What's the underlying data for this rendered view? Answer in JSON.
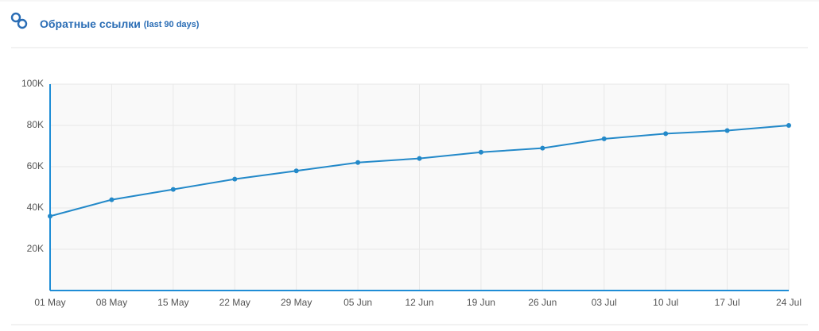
{
  "header": {
    "title": "Обратные ссылки",
    "subtitle": "(last 90 days)"
  },
  "chart_data": {
    "type": "line",
    "categories": [
      "01 May",
      "08 May",
      "15 May",
      "22 May",
      "29 May",
      "05 Jun",
      "12 Jun",
      "19 Jun",
      "26 Jun",
      "03 Jul",
      "10 Jul",
      "17 Jul",
      "24 Jul"
    ],
    "series": [
      {
        "color": "#2389c9",
        "values": [
          36000,
          44000,
          49000,
          54000,
          58000,
          62000,
          64000,
          67000,
          69000,
          73500,
          76000,
          77500,
          80000
        ]
      }
    ],
    "ylim": [
      0,
      100000
    ],
    "yticks": [
      {
        "value": 20000,
        "label": "20K"
      },
      {
        "value": 40000,
        "label": "40K"
      },
      {
        "value": 60000,
        "label": "60K"
      },
      {
        "value": 80000,
        "label": "80K"
      },
      {
        "value": 100000,
        "label": "100K"
      }
    ],
    "grid": true
  }
}
